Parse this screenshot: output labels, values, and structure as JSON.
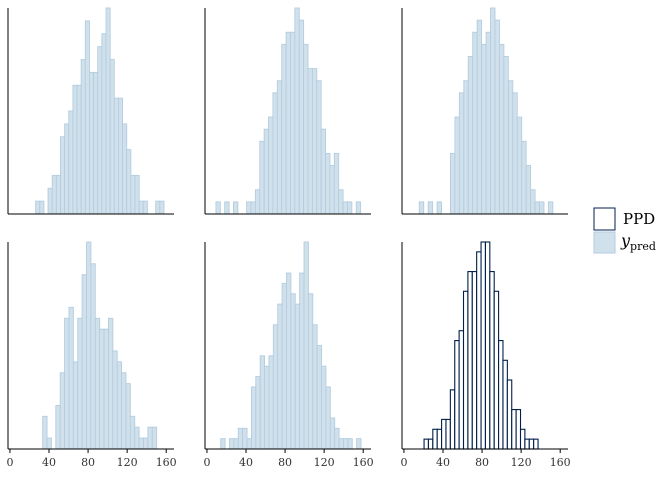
{
  "chart_data": {
    "type": "bar",
    "x_ticks": [
      "0",
      "40",
      "80",
      "120",
      "160"
    ],
    "xlim": [
      -2,
      168
    ],
    "legend": {
      "position": "right",
      "entries": [
        {
          "label": "PPD",
          "fill": "#ffffff",
          "stroke": "#011f4b"
        },
        {
          "label_main": "y",
          "label_sub": "pred",
          "fill": "#d1e1ec",
          "stroke": "#b3cde0"
        }
      ]
    },
    "colors": {
      "ypred_fill": "#d1e1ec",
      "ypred_stroke": "#b3cde0",
      "ppd_fill": "#ffffff",
      "ppd_stroke": "#011f4b",
      "axis": "#000000"
    },
    "panels": [
      {
        "name": "ypred-1",
        "series": "ypred",
        "start": 26.3,
        "binwidth": 4.24,
        "counts": [
          1,
          1,
          0,
          2,
          3,
          3,
          6,
          7,
          8,
          10,
          10,
          12,
          15,
          11,
          11,
          13,
          14,
          16,
          12,
          9,
          9,
          7,
          5,
          3,
          3,
          1,
          1,
          0,
          0,
          1,
          1
        ]
      },
      {
        "name": "ypred-2",
        "series": "ypred",
        "start": 9.2,
        "binwidth": 4.49,
        "counts": [
          1,
          0,
          1,
          0,
          1,
          0,
          0,
          1,
          1,
          2,
          6,
          7,
          8,
          10,
          11,
          14,
          15,
          15,
          17,
          16,
          14,
          12,
          12,
          11,
          7,
          5,
          4,
          5,
          2,
          1,
          1,
          0,
          1
        ]
      },
      {
        "name": "ypred-3",
        "series": "ypred",
        "start": 15.7,
        "binwidth": 4.56,
        "counts": [
          1,
          0,
          1,
          0,
          1,
          0,
          0,
          5,
          8,
          10,
          11,
          13,
          15,
          16,
          14,
          15,
          17,
          16,
          14,
          13,
          11,
          10,
          8,
          6,
          4,
          2,
          1,
          1,
          0,
          1
        ]
      },
      {
        "name": "ypred-4",
        "series": "ypred",
        "start": 33.5,
        "binwidth": 4.49,
        "counts": [
          3,
          1,
          0,
          4,
          7,
          12,
          13,
          8,
          12,
          16,
          19,
          17,
          12,
          11,
          11,
          12,
          9,
          8,
          7,
          6,
          3,
          2,
          1,
          1,
          2,
          2
        ]
      },
      {
        "name": "ypred-5",
        "series": "ypred",
        "start": 14.1,
        "binwidth": 4.49,
        "counts": [
          1,
          0,
          1,
          1,
          2,
          2,
          1,
          6,
          7,
          9,
          8,
          9,
          12,
          14,
          16,
          17,
          15,
          14,
          17,
          20,
          15,
          12,
          10,
          8,
          6,
          3,
          2,
          1,
          1,
          1,
          0,
          1
        ]
      },
      {
        "name": "ppd",
        "series": "ppd",
        "start": 16.1,
        "binwidth": 4.49,
        "counts": [
          0,
          1,
          1,
          2,
          2,
          3,
          3,
          6,
          11,
          12,
          16,
          18,
          18,
          20,
          21,
          21,
          18,
          16,
          11,
          9,
          7,
          4,
          4,
          2,
          1,
          1,
          1
        ]
      }
    ]
  }
}
